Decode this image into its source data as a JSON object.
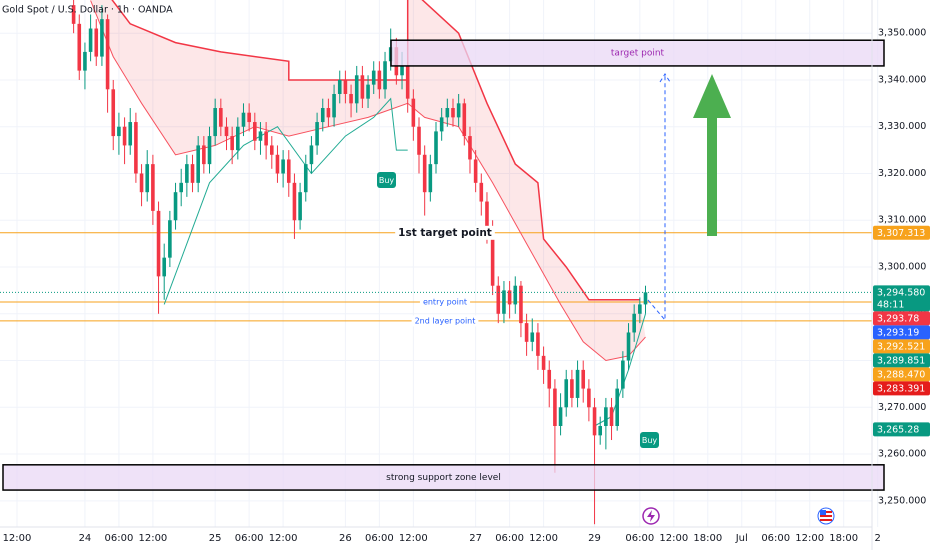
{
  "chart_data": {
    "type": "candlestick",
    "title": "Gold Spot / U.S. Dollar · 1h · OANDA",
    "up_color": "#089981",
    "down_color": "#f23645",
    "grid": true,
    "xlim": [
      -3,
      151
    ],
    "ylim": [
      3244.4,
      3357.1
    ],
    "xticks": [
      {
        "value": 0,
        "label": "12:00"
      },
      {
        "value": 12,
        "label": "24"
      },
      {
        "value": 18,
        "label": "06:00"
      },
      {
        "value": 24,
        "label": "12:00"
      },
      {
        "value": 35,
        "label": "25"
      },
      {
        "value": 41,
        "label": "06:00"
      },
      {
        "value": 47,
        "label": "12:00"
      },
      {
        "value": 58,
        "label": "26"
      },
      {
        "value": 64,
        "label": "06:00"
      },
      {
        "value": 70,
        "label": "12:00"
      },
      {
        "value": 81,
        "label": "27"
      },
      {
        "value": 87,
        "label": "06:00"
      },
      {
        "value": 93,
        "label": "12:00"
      },
      {
        "value": 102,
        "label": "29"
      },
      {
        "value": 110,
        "label": "06:00"
      },
      {
        "value": 116,
        "label": "12:00"
      },
      {
        "value": 122,
        "label": "18:00"
      },
      {
        "value": 128,
        "label": "Jul"
      },
      {
        "value": 134,
        "label": "06:00"
      },
      {
        "value": 140,
        "label": "12:00"
      },
      {
        "value": 146,
        "label": "18:00"
      },
      {
        "value": 152,
        "label": "2"
      }
    ],
    "yticks": [
      {
        "value": 3250,
        "label": "3,250.000"
      },
      {
        "value": 3260,
        "label": "3,260.000"
      },
      {
        "value": 3270,
        "label": "3,270.000"
      },
      {
        "value": 3280,
        "label": "3,280.000"
      },
      {
        "value": 3290,
        "label": "3,290.000"
      },
      {
        "value": 3300,
        "label": "3,300.000"
      },
      {
        "value": 3310,
        "label": "3,310.000"
      },
      {
        "value": 3320,
        "label": "3,320.000"
      },
      {
        "value": 3330,
        "label": "3,330.000"
      },
      {
        "value": 3340,
        "label": "3,340.000"
      },
      {
        "value": 3350,
        "label": "3,350.000"
      }
    ],
    "candles": {
      "x": [
        10,
        11,
        12,
        13,
        14,
        15,
        16,
        17,
        18,
        19,
        20,
        21,
        22,
        23,
        24,
        25,
        26,
        27,
        28,
        29,
        30,
        31,
        32,
        33,
        34,
        35,
        36,
        37,
        38,
        39,
        40,
        41,
        42,
        43,
        44,
        45,
        46,
        47,
        48,
        49,
        50,
        51,
        52,
        53,
        54,
        55,
        56,
        57,
        58,
        59,
        60,
        61,
        62,
        63,
        64,
        65,
        66,
        67,
        68,
        69,
        70,
        71,
        72,
        73,
        74,
        75,
        76,
        77,
        78,
        79,
        80,
        81,
        82,
        83,
        84,
        85,
        86,
        87,
        88,
        89,
        90,
        91,
        92,
        93,
        94,
        95,
        96,
        97,
        98,
        99,
        100,
        101,
        102,
        103,
        104,
        105,
        106,
        107,
        108,
        109,
        110,
        111
      ],
      "open": [
        3356,
        3352,
        3342,
        3346,
        3351,
        3345,
        3353,
        3338,
        3328,
        3330,
        3326,
        3331,
        3320,
        3316,
        3322,
        3312,
        3298,
        3302,
        3310,
        3316,
        3318,
        3322,
        3318,
        3326,
        3322,
        3328,
        3334,
        3330,
        3328,
        3325,
        3330,
        3333,
        3331,
        3327,
        3329,
        3326,
        3324,
        3320,
        3323,
        3318,
        3310,
        3316,
        3322,
        3326,
        3331,
        3334,
        3332,
        3337,
        3340,
        3337,
        3335,
        3341,
        3336,
        3339,
        3342,
        3338,
        3344,
        3347,
        3341,
        3343,
        3336,
        3330,
        3324,
        3316,
        3322,
        3329,
        3332,
        3334,
        3332,
        3335,
        3328,
        3323,
        3318,
        3314,
        3308,
        3296,
        3290,
        3295,
        3292,
        3296,
        3288,
        3284,
        3286,
        3281,
        3278,
        3274,
        3266,
        3270,
        3276,
        3272,
        3278,
        3274,
        3270,
        3264,
        3266,
        3270,
        3266,
        3274,
        3280,
        3286,
        3290,
        3292
      ],
      "high": [
        3358,
        3354,
        3348,
        3354,
        3353,
        3356,
        3354,
        3340,
        3333,
        3332,
        3334,
        3333,
        3322,
        3325,
        3324,
        3314,
        3305,
        3312,
        3318,
        3321,
        3324,
        3324,
        3328,
        3328,
        3330,
        3336,
        3336,
        3332,
        3330,
        3332,
        3335,
        3335,
        3333,
        3331,
        3331,
        3328,
        3326,
        3325,
        3325,
        3320,
        3318,
        3324,
        3328,
        3333,
        3336,
        3336,
        3339,
        3342,
        3342,
        3339,
        3343,
        3343,
        3341,
        3344,
        3344,
        3346,
        3351,
        3349,
        3346,
        3345,
        3338,
        3332,
        3326,
        3324,
        3331,
        3334,
        3336,
        3336,
        3337,
        3336,
        3330,
        3325,
        3320,
        3316,
        3310,
        3298,
        3297,
        3297,
        3298,
        3297,
        3290,
        3289,
        3288,
        3283,
        3280,
        3276,
        3273,
        3278,
        3278,
        3280,
        3280,
        3276,
        3272,
        3268,
        3272,
        3272,
        3276,
        3282,
        3288,
        3292,
        3293.5,
        3296
      ],
      "low": [
        3350,
        3340,
        3338,
        3344,
        3343,
        3343,
        3333,
        3325,
        3324,
        3322,
        3324,
        3318,
        3313,
        3314,
        3309,
        3290,
        3293,
        3300,
        3308,
        3313,
        3315,
        3316,
        3316,
        3320,
        3320,
        3326,
        3328,
        3325,
        3322,
        3323,
        3328,
        3329,
        3325,
        3324,
        3323,
        3321,
        3318,
        3317,
        3315,
        3306,
        3308,
        3314,
        3320,
        3324,
        3329,
        3330,
        3330,
        3335,
        3335,
        3332,
        3333,
        3334,
        3334,
        3337,
        3336,
        3336,
        3342,
        3339,
        3338,
        3333,
        3327,
        3320,
        3311,
        3314,
        3320,
        3327,
        3330,
        3330,
        3330,
        3326,
        3320,
        3316,
        3311,
        3305,
        3294,
        3288,
        3288,
        3289,
        3290,
        3285,
        3281,
        3282,
        3278,
        3275,
        3270,
        3256,
        3264,
        3268,
        3270,
        3270,
        3271,
        3267,
        3245,
        3262,
        3261,
        3263,
        3265,
        3272,
        3278,
        3284,
        3288,
        3290
      ],
      "close": [
        3352,
        3342,
        3346,
        3351,
        3345,
        3353,
        3338,
        3328,
        3330,
        3326,
        3331,
        3320,
        3316,
        3322,
        3312,
        3298,
        3302,
        3310,
        3316,
        3318,
        3322,
        3318,
        3326,
        3322,
        3328,
        3334,
        3330,
        3328,
        3325,
        3330,
        3333,
        3331,
        3327,
        3329,
        3326,
        3324,
        3320,
        3323,
        3318,
        3310,
        3316,
        3322,
        3326,
        3331,
        3334,
        3332,
        3337,
        3340,
        3337,
        3335,
        3341,
        3336,
        3339,
        3342,
        3338,
        3344,
        3347,
        3341,
        3343,
        3336,
        3330,
        3324,
        3316,
        3322,
        3329,
        3332,
        3334,
        3332,
        3335,
        3328,
        3323,
        3318,
        3314,
        3308,
        3296,
        3290,
        3295,
        3292,
        3296,
        3288,
        3284,
        3286,
        3281,
        3278,
        3274,
        3266,
        3270,
        3276,
        3272,
        3278,
        3274,
        3270,
        3264,
        3266,
        3270,
        3266,
        3274,
        3280,
        3286,
        3290,
        3292,
        3294.58
      ]
    },
    "lines": [
      {
        "color": "#f23645",
        "width": 1.5,
        "x": [
          15,
          20,
          28,
          36,
          48,
          48,
          69,
          69,
          78,
          83,
          88,
          92,
          93,
          97,
          101,
          110
        ],
        "values": [
          3360,
          3352,
          3348,
          3346,
          3344,
          3340,
          3340,
          3360,
          3350,
          3335,
          3322,
          3318,
          3306,
          3300,
          3293,
          3293
        ]
      },
      {
        "color": "#f7525f",
        "width": 1,
        "x": [
          13,
          17,
          22,
          28,
          35,
          42,
          48,
          55,
          62,
          69,
          72,
          78,
          84,
          90,
          96,
          100,
          104,
          108,
          111
        ],
        "values": [
          3357,
          3345,
          3335,
          3324,
          3326,
          3330,
          3328,
          3330,
          3332,
          3335,
          3332,
          3330,
          3318,
          3305,
          3292,
          3284,
          3280,
          3281,
          3285
        ]
      },
      {
        "color": "#22ab94",
        "width": 1,
        "x": [
          26,
          30,
          34,
          40,
          46,
          52,
          58,
          63,
          66,
          67,
          69,
          null,
          102,
          105,
          108,
          111
        ],
        "values": [
          3292,
          3305,
          3318,
          3326,
          3330,
          3320,
          3328,
          3332,
          3336,
          3325,
          3325,
          null,
          3266,
          3268,
          3278,
          3290
        ]
      }
    ],
    "levels": [
      {
        "value": 3307.313,
        "color": "#f7a21b",
        "label": "1st target point",
        "label_color": "#131722",
        "label_style": "bold"
      },
      {
        "value": 3292.521,
        "color": "#f7a21b",
        "label": "entry point",
        "label_color": "#2962ff",
        "label_style": "small"
      },
      {
        "value": 3288.47,
        "color": "#f7a21b",
        "label": "2nd layer point",
        "label_color": "#2962ff",
        "label_style": "small"
      }
    ],
    "zones": [
      {
        "label": "target point",
        "from": 3343,
        "to": 3348.5,
        "text_color": "#9c27b0"
      },
      {
        "label": "strong support zone level",
        "from": 3252.3,
        "to": 3257.7,
        "text_color": "#131722"
      }
    ],
    "tags": [
      {
        "value": 3307.313,
        "label": "3,307.313",
        "color": "#f7a21b"
      },
      {
        "value": 3294.58,
        "label": "3,294.580",
        "color": "#089981",
        "countdown": "48:11"
      },
      {
        "value": 3293.78,
        "label": "3,293.78",
        "color": "#f23645"
      },
      {
        "value": 3293.19,
        "label": "3,293.19",
        "color": "#2962ff"
      },
      {
        "value": 3292.521,
        "label": "3,292.521",
        "color": "#f7a21b"
      },
      {
        "value": 3289.851,
        "label": "3,289.851",
        "color": "#089981"
      },
      {
        "value": 3288.47,
        "label": "3,288.470",
        "color": "#f7a21b"
      },
      {
        "value": 3283.391,
        "label": "3,283.391",
        "color": "#e51c1c"
      },
      {
        "value": 3265.28,
        "label": "3,265.28",
        "color": "#089981"
      }
    ],
    "signals": [
      "Buy",
      "Buy"
    ]
  }
}
